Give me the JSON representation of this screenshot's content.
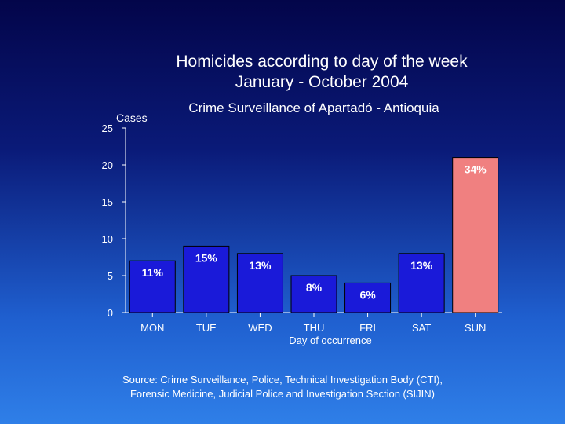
{
  "chart_data": {
    "type": "bar",
    "title_line1": "Homicides according to day of the week",
    "title_line2": "January - October 2004",
    "subtitle": "Crime Surveillance of Apartadó - Antioquia",
    "ylabel": "Cases",
    "xlabel": "Day of occurrence",
    "categories": [
      "MON",
      "TUE",
      "WED",
      "THU",
      "FRI",
      "SAT",
      "SUN"
    ],
    "values": [
      7,
      9,
      8,
      5,
      4,
      8,
      21
    ],
    "data_labels": [
      "11%",
      "15%",
      "13%",
      "8%",
      "6%",
      "13%",
      "34%"
    ],
    "bar_colors": [
      "#1a1ad9",
      "#1a1ad9",
      "#1a1ad9",
      "#1a1ad9",
      "#1a1ad9",
      "#1a1ad9",
      "#f08080"
    ],
    "ylim": [
      0,
      25
    ],
    "yticks": [
      0,
      5,
      10,
      15,
      20,
      25
    ],
    "grid": false,
    "legend": "none"
  },
  "source_line1": "Source: Crime Surveillance, Police, Technical Investigation Body (CTI),",
  "source_line2": "Forensic Medicine, Judicial Police and Investigation Section (SIJIN)"
}
